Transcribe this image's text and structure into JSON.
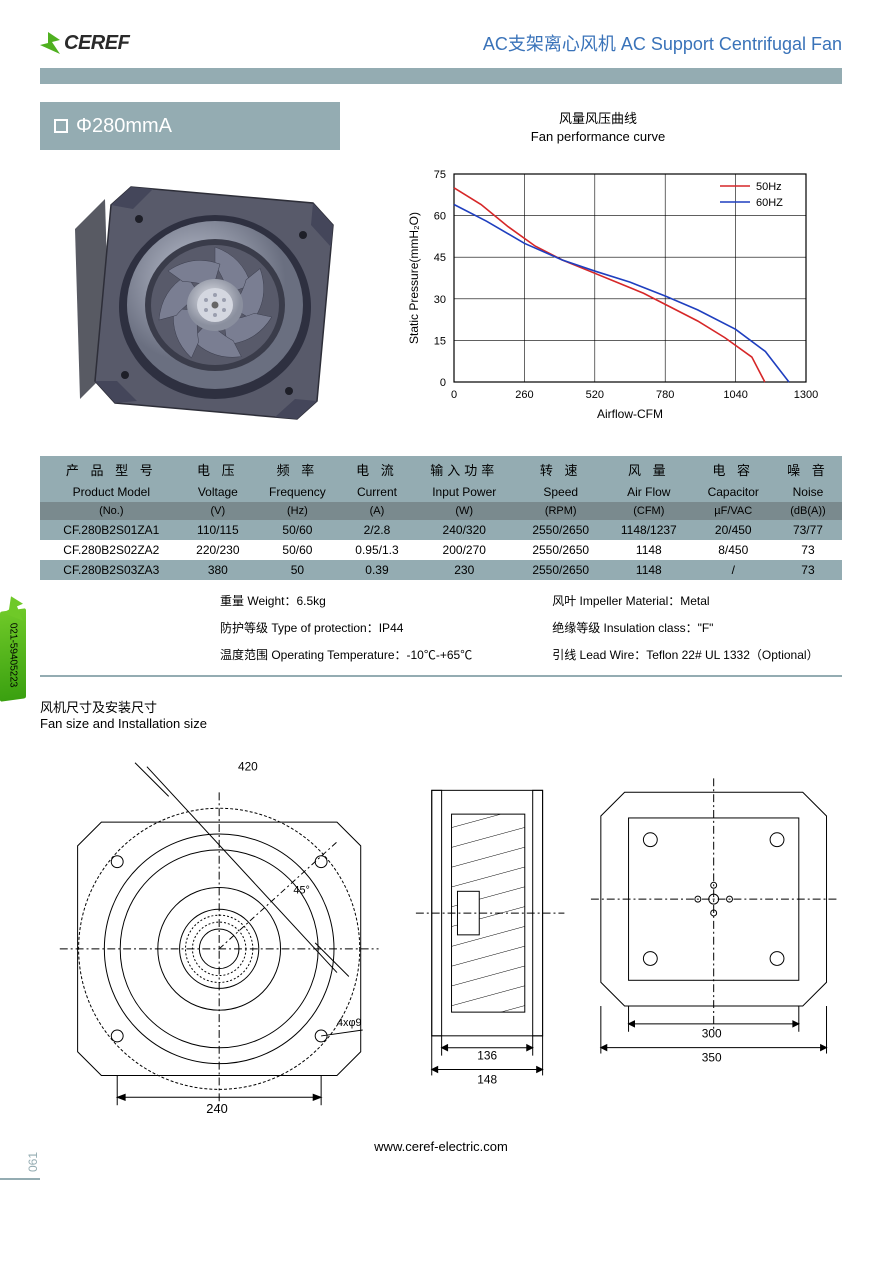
{
  "brand": "CEREF",
  "header_title_cn": "AC支架离心风机",
  "header_title_en1": "AC Support",
  "header_title_en2": "Centrifugal Fan",
  "model_label": "Φ280mmA",
  "curve_title_cn": "风量风压曲线",
  "curve_title_en": "Fan performance curve",
  "chart": {
    "y_label": "Static Pressure(mmH₂O)",
    "x_label": "Airflow-CFM",
    "xlim": [
      0,
      1300
    ],
    "ylim": [
      0,
      75
    ],
    "xticks": [
      0,
      260,
      520,
      780,
      1040,
      1300
    ],
    "yticks": [
      0,
      15,
      30,
      45,
      60,
      75
    ],
    "grid_color": "#000000",
    "bg_color": "#ffffff",
    "legend": [
      {
        "label": "50Hz",
        "color": "#d62728"
      },
      {
        "label": "60HZ",
        "color": "#1f3fbf"
      }
    ],
    "series": [
      {
        "name": "50Hz",
        "color": "#d62728",
        "points": [
          [
            0,
            70
          ],
          [
            100,
            64
          ],
          [
            200,
            56
          ],
          [
            300,
            49
          ],
          [
            400,
            44
          ],
          [
            500,
            40
          ],
          [
            600,
            36
          ],
          [
            700,
            32
          ],
          [
            800,
            27
          ],
          [
            900,
            22
          ],
          [
            1000,
            16
          ],
          [
            1100,
            9
          ],
          [
            1148,
            0
          ]
        ]
      },
      {
        "name": "60Hz",
        "color": "#1f3fbf",
        "points": [
          [
            0,
            64
          ],
          [
            120,
            58
          ],
          [
            260,
            50
          ],
          [
            400,
            44
          ],
          [
            520,
            40
          ],
          [
            650,
            36
          ],
          [
            780,
            31
          ],
          [
            900,
            26
          ],
          [
            1040,
            19
          ],
          [
            1150,
            11
          ],
          [
            1237,
            0
          ]
        ]
      }
    ],
    "axis_fontsize": 11,
    "label_fontsize": 12
  },
  "table": {
    "headers_cn": [
      "产 品 型 号",
      "电 压",
      "频 率",
      "电 流",
      "输入功率",
      "转 速",
      "风 量",
      "电 容",
      "噪 音"
    ],
    "headers_en": [
      "Product Model",
      "Voltage",
      "Frequency",
      "Current",
      "Input Power",
      "Speed",
      "Air Flow",
      "Capacitor",
      "Noise"
    ],
    "headers_unit": [
      "(No.)",
      "(V)",
      "(Hz)",
      "(A)",
      "(W)",
      "(RPM)",
      "(CFM)",
      "µF/VAC",
      "(dB(A))"
    ],
    "rows": [
      [
        "CF.280B2S01ZA1",
        "110/115",
        "50/60",
        "2/2.8",
        "240/320",
        "2550/2650",
        "1148/1237",
        "20/450",
        "73/77"
      ],
      [
        "CF.280B2S02ZA2",
        "220/230",
        "50/60",
        "0.95/1.3",
        "200/270",
        "2550/2650",
        "1148",
        "8/450",
        "73"
      ],
      [
        "CF.280B2S03ZA3",
        "380",
        "50",
        "0.39",
        "230",
        "2550/2650",
        "1148",
        "/",
        "73"
      ]
    ],
    "row_alt_bg": "#94acb2",
    "row_bg": "#ffffff"
  },
  "specs_left": [
    "重量 Weight：6.5kg",
    "防护等级 Type of protection：IP44",
    "温度范围 Operating Temperature：-10℃-+65℃"
  ],
  "specs_right": [
    "风叶 Impeller Material：Metal",
    "绝缘等级 Insulation class：\"F\"",
    "引线 Lead Wire：Teflon 22# UL 1332（Optional）"
  ],
  "drawing_title_cn": "风机尺寸及安装尺寸",
  "drawing_title_en": "Fan size and Installation size",
  "dims": {
    "outer_diag": "420",
    "bolt_angle": "45°",
    "hole": "4xφ9",
    "bolt_sq": "240",
    "side_w": "136",
    "side_w2": "148",
    "back_inner": "300",
    "back_outer": "350"
  },
  "footer_url": "www.ceref-electric.com",
  "page_no": "061",
  "side_phone": "021-59405223",
  "colors": {
    "teal": "#94acb2",
    "blue": "#3a73b9",
    "green1": "#6fc928"
  }
}
